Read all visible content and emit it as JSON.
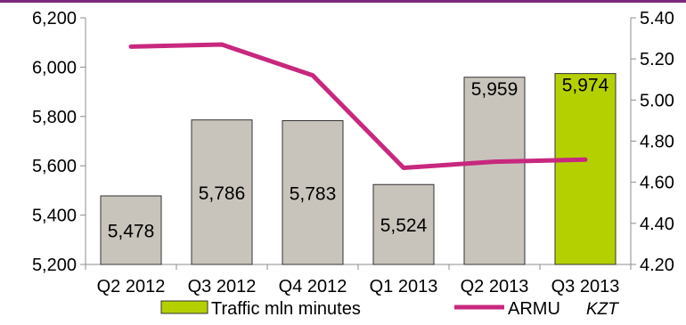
{
  "chart_data": {
    "type": "bar",
    "categories": [
      "Q2 2012",
      "Q3 2012",
      "Q4 2012",
      "Q1 2013",
      "Q2 2013",
      "Q3 2013"
    ],
    "series": [
      {
        "name": "Traffic mln minutes",
        "type": "bar",
        "axis": "left",
        "values": [
          5478,
          5786,
          5783,
          5524,
          5959,
          5974
        ],
        "data_labels": [
          "5,478",
          "5,786",
          "5,783",
          "5,524",
          "5,959",
          "5,974"
        ],
        "color": "#c8c4bc",
        "highlight_color": "#b5d000",
        "highlight_index": 5
      },
      {
        "name": "ARMU",
        "type": "line",
        "axis": "right",
        "values": [
          5.26,
          5.27,
          5.12,
          4.67,
          4.7,
          4.71
        ],
        "color": "#c8287e"
      }
    ],
    "y_left": {
      "ylim": [
        5200,
        6200
      ],
      "ticks": [
        "5,200",
        "5,400",
        "5,600",
        "5,800",
        "6,000",
        "6,200"
      ],
      "tick_values": [
        5200,
        5400,
        5600,
        5800,
        6000,
        6200
      ]
    },
    "y_right": {
      "ylim": [
        4.2,
        5.4
      ],
      "ticks": [
        "4.20",
        "4.40",
        "4.60",
        "4.80",
        "5.00",
        "5.20",
        "5.40"
      ],
      "tick_values": [
        4.2,
        4.4,
        4.6,
        4.8,
        5.0,
        5.2,
        5.4
      ],
      "unit": "KZT"
    },
    "title": "",
    "grid": false,
    "legend": "bottom"
  },
  "colors": {
    "accent": "#7b2a7e",
    "axis": "#8c8c8c",
    "bar_stroke": "#333333"
  }
}
